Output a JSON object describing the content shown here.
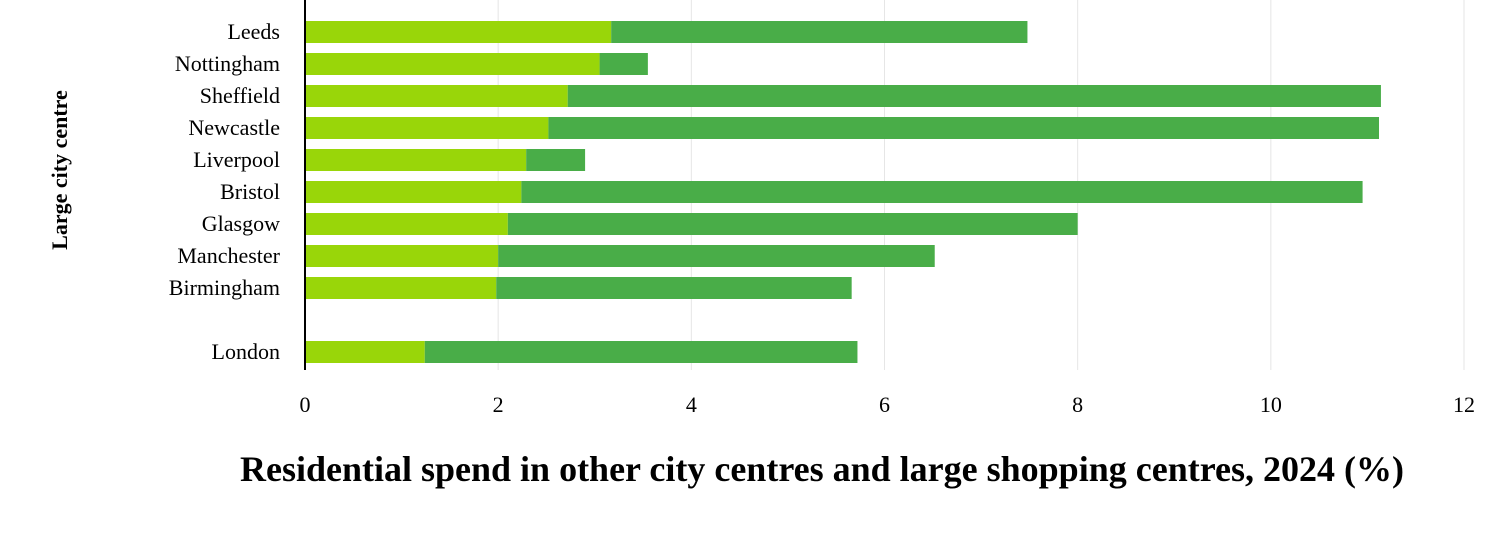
{
  "chart_data": {
    "type": "bar",
    "orientation": "horizontal",
    "stacked": true,
    "categories": [
      "Leeds",
      "Nottingham",
      "Sheffield",
      "Newcastle",
      "Liverpool",
      "Bristol",
      "Glasgow",
      "Manchester",
      "Birmingham",
      "London"
    ],
    "series": [
      {
        "color": "#99d609",
        "values": [
          3.17,
          3.05,
          2.72,
          2.52,
          2.29,
          2.24,
          2.1,
          2.0,
          1.98,
          1.24
        ]
      },
      {
        "color": "#49ad48",
        "values": [
          4.31,
          0.5,
          8.42,
          8.6,
          0.61,
          8.71,
          5.9,
          4.52,
          3.68,
          4.48
        ]
      }
    ],
    "xlabel": "Residential spend in other city centres and large shopping centres, 2024 (%)",
    "ylabel": "Large city centre",
    "xlim": [
      0,
      12
    ],
    "xticks": [
      0,
      2,
      4,
      6,
      8,
      10,
      12
    ],
    "grid": true
  }
}
